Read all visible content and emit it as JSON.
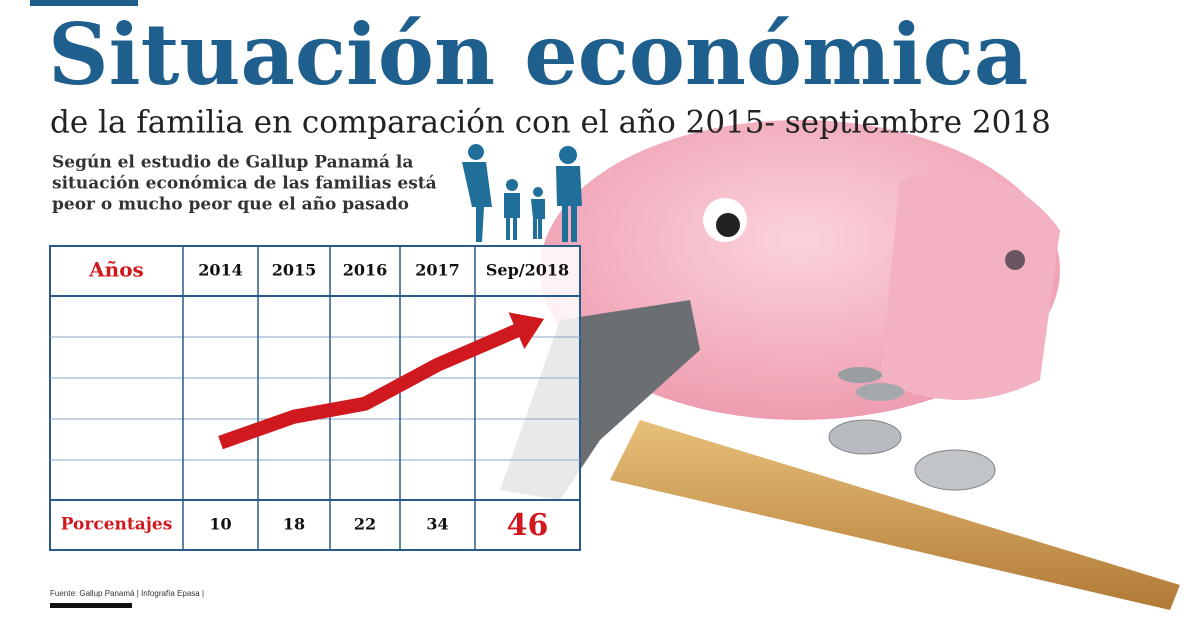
{
  "chart_data": {
    "type": "line",
    "title": "Situación económica",
    "subtitle": "de la familia en comparación con el año 2015- septiembre 2018",
    "description": [
      "Según el estudio de Gallup Panamá la",
      "situación económica de las familias está",
      "peor o mucho peor que el año pasado"
    ],
    "category_header": "Años",
    "value_header": "Porcentajes",
    "categories": [
      "2014",
      "2015",
      "2016",
      "2017",
      "Sep/2018"
    ],
    "values": [
      10,
      18,
      22,
      34,
      46
    ],
    "color": "#d0191f",
    "source": "Fuente: Gallup Panamá | Infografía Epasa |"
  }
}
